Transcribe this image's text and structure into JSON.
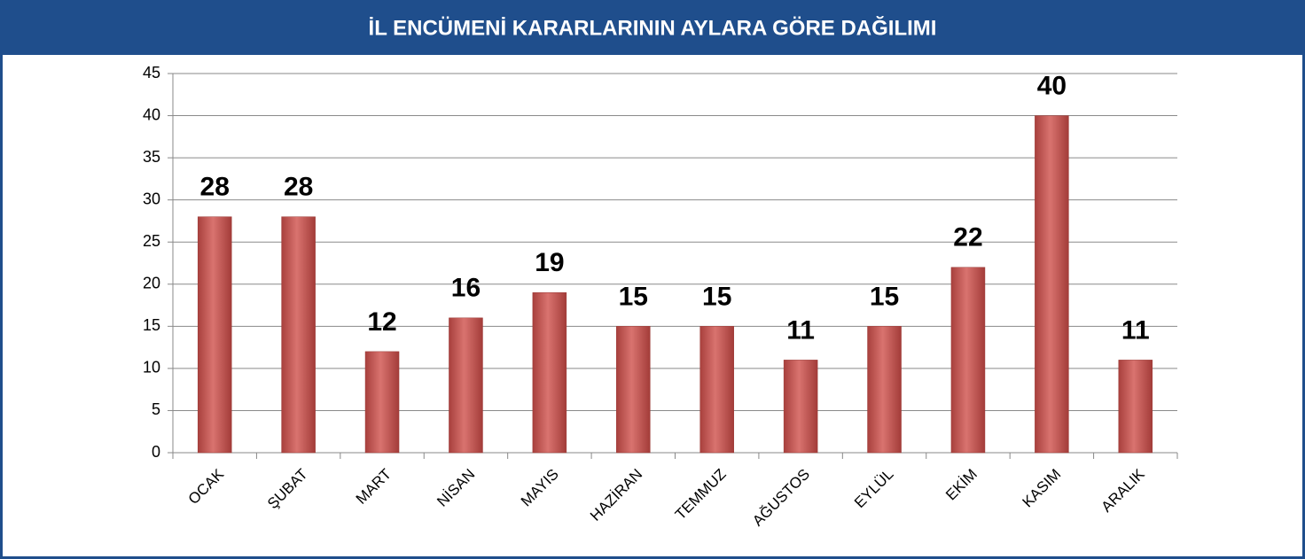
{
  "chart_data": {
    "type": "bar",
    "title": "İL ENCÜMENİ KARARLARININ AYLARA GÖRE DAĞILIMI",
    "categories": [
      "OCAK",
      "ŞUBAT",
      "MART",
      "NİSAN",
      "MAYIS",
      "HAZİRAN",
      "TEMMUZ",
      "AĞUSTOS",
      "EYLÜL",
      "EKİM",
      "KASIM",
      "ARALIK"
    ],
    "values": [
      28,
      28,
      12,
      16,
      19,
      15,
      15,
      11,
      15,
      22,
      40,
      11
    ],
    "color": "#c0504d",
    "ylim": [
      0,
      45
    ],
    "yticks": [
      0,
      5,
      10,
      15,
      20,
      25,
      30,
      35,
      40,
      45
    ],
    "grid": true
  }
}
